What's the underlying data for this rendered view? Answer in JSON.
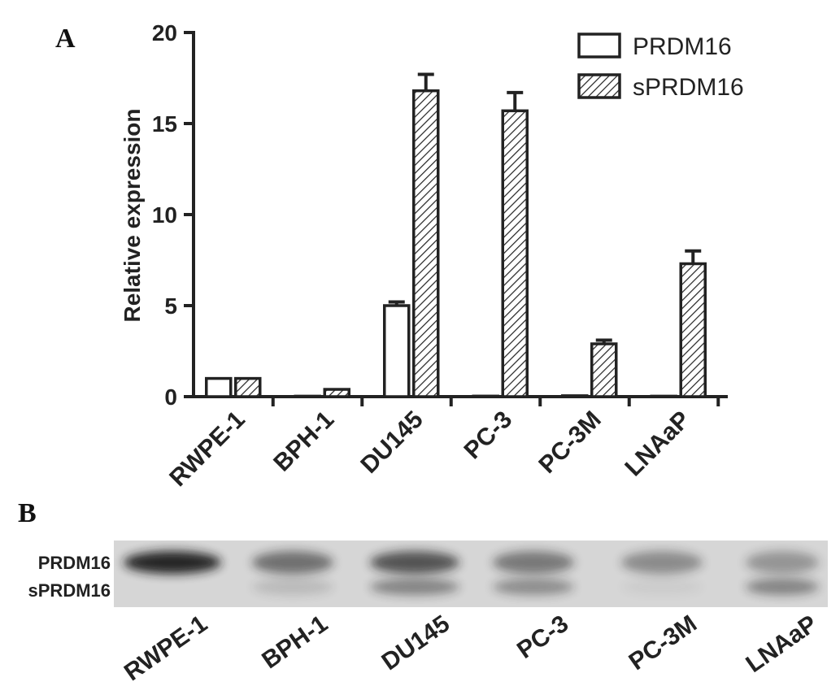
{
  "panel_a_label": "A",
  "panel_b_label": "B",
  "chart_data": {
    "type": "bar",
    "categories": [
      "RWPE-1",
      "BPH-1",
      "DU145",
      "PC-3",
      "PC-3M",
      "LNAaP"
    ],
    "series": [
      {
        "name": "PRDM16",
        "values": [
          1.0,
          0.0,
          5.0,
          0.03,
          0.05,
          0.02
        ],
        "errors": [
          0.0,
          0.0,
          0.2,
          0.0,
          0.0,
          0.0
        ],
        "fill": "open"
      },
      {
        "name": "sPRDM16",
        "values": [
          1.0,
          0.4,
          16.8,
          15.7,
          2.9,
          7.3
        ],
        "errors": [
          0.0,
          0.0,
          0.9,
          1.0,
          0.2,
          0.7
        ],
        "fill": "hatched"
      }
    ],
    "ylabel": "Relative  expression",
    "xlabel": "",
    "ylim": [
      0,
      20
    ],
    "yticks": [
      0,
      5,
      10,
      15,
      20
    ],
    "grid": false,
    "legend_position": "top-right"
  },
  "blot": {
    "band_labels": [
      "PRDM16",
      "sPRDM16"
    ],
    "lanes": [
      "RWPE-1",
      "BPH-1",
      "DU145",
      "PC-3",
      "PC-3M",
      "LNAaP"
    ],
    "upper_band_intensity": [
      0.95,
      0.55,
      0.7,
      0.5,
      0.4,
      0.35
    ],
    "lower_band_intensity": [
      0.0,
      0.15,
      0.45,
      0.4,
      0.05,
      0.45
    ]
  },
  "colors": {
    "ink": "#222222",
    "blot_background": "#d6d6d6",
    "band": "#1a1a1a"
  }
}
